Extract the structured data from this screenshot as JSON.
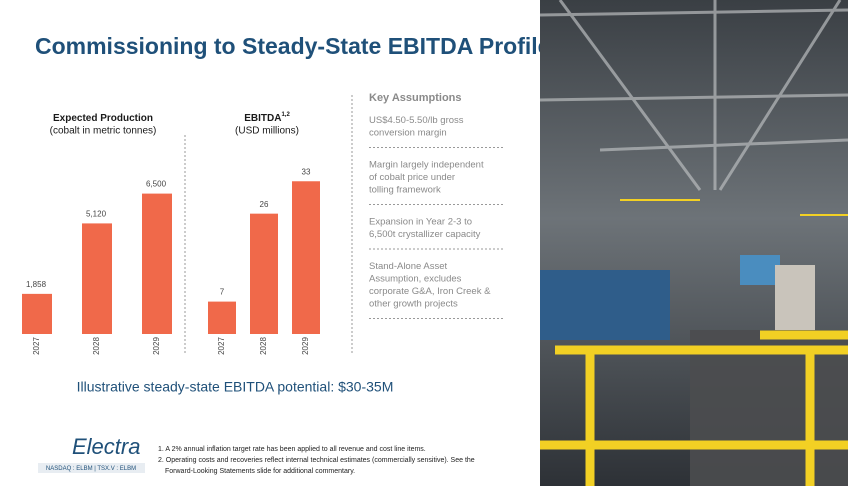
{
  "title": "Commissioning to Steady-State EBITDA Profile",
  "chart_data": [
    {
      "type": "bar",
      "title": "Expected Production",
      "subtitle": "(cobalt in metric tonnes)",
      "categories": [
        "2027",
        "2028",
        "2029"
      ],
      "values": [
        1858,
        5120,
        6500
      ],
      "value_labels": [
        "1,858",
        "5,120",
        "6,500"
      ],
      "color": "#f0694a",
      "ylim": [
        0,
        7500
      ]
    },
    {
      "type": "bar",
      "title": "EBITDA",
      "title_note": "1,2",
      "subtitle": "(USD millions)",
      "categories": [
        "2027",
        "2028",
        "2029"
      ],
      "values": [
        7,
        26,
        33
      ],
      "color": "#f0694a",
      "ylim": [
        0,
        35
      ]
    }
  ],
  "assumptions": {
    "heading": "Key Assumptions",
    "items": [
      "US$4.50-5.50/lb gross conversion margin",
      "Margin largely independent of cobalt price under tolling framework",
      "Expansion in Year 2-3 to 6,500t crystallizer capacity",
      "Stand-Alone Asset Assumption, excludes corporate G&A, Iron Creek & other growth projects"
    ]
  },
  "callout": "Illustrative steady-state EBITDA potential: $30-35M",
  "logo": {
    "name": "Electra",
    "tickers": "NASDAQ : ELBM  |  TSX.V : ELBM"
  },
  "footnotes": [
    "1. A 2% annual inflation target rate has been applied to all revenue and cost line items.",
    "2. Operating costs and recoveries reflect internal technical estimates (commercially sensitive). See the",
    "Forward-Looking Statements slide for additional commentary."
  ]
}
